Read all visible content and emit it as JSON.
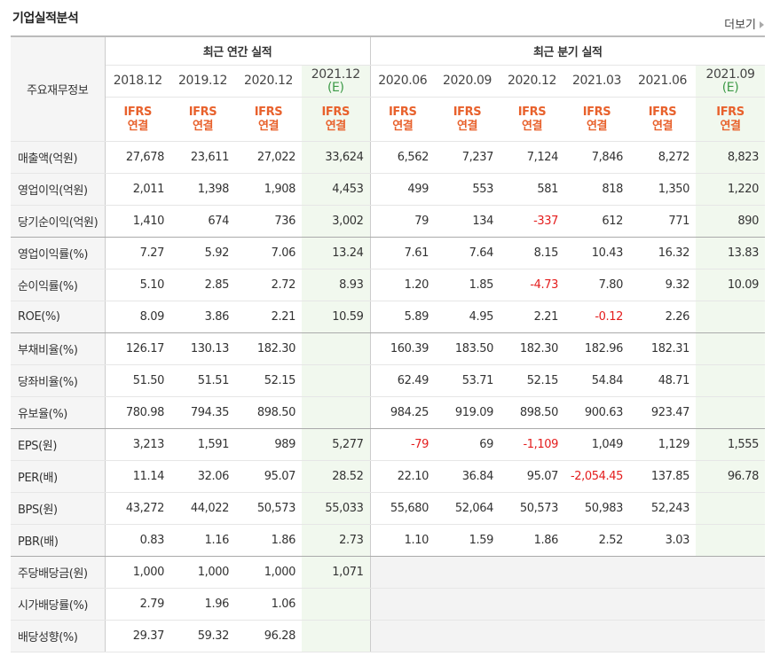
{
  "header": {
    "title": "기업실적분석",
    "more": "더보기"
  },
  "table": {
    "corner": "주요재무정보",
    "groups": [
      "최근 연간 실적",
      "최근 분기 실적"
    ],
    "periods": [
      {
        "label": "2018.12"
      },
      {
        "label": "2019.12"
      },
      {
        "label": "2020.12"
      },
      {
        "label": "2021.12",
        "note": "(E)"
      },
      {
        "label": "2020.06"
      },
      {
        "label": "2020.09"
      },
      {
        "label": "2020.12"
      },
      {
        "label": "2021.03"
      },
      {
        "label": "2021.06"
      },
      {
        "label": "2021.09",
        "note": "(E)"
      }
    ],
    "basis": [
      [
        "IFRS",
        "연결"
      ],
      [
        "IFRS",
        "연결"
      ],
      [
        "IFRS",
        "연결"
      ],
      [
        "IFRS",
        "연결"
      ],
      [
        "IFRS",
        "연결"
      ],
      [
        "IFRS",
        "연결"
      ],
      [
        "IFRS",
        "연결"
      ],
      [
        "IFRS",
        "연결"
      ],
      [
        "IFRS",
        "연결"
      ],
      [
        "IFRS",
        "연결"
      ]
    ],
    "rows": [
      {
        "label": "매출액(억원)",
        "values": [
          "27,678",
          "23,611",
          "27,022",
          "33,624",
          "6,562",
          "7,237",
          "7,124",
          "7,846",
          "8,272",
          "8,823"
        ]
      },
      {
        "label": "영업이익(억원)",
        "values": [
          "2,011",
          "1,398",
          "1,908",
          "4,453",
          "499",
          "553",
          "581",
          "818",
          "1,350",
          "1,220"
        ]
      },
      {
        "label": "당기순이익(억원)",
        "values": [
          "1,410",
          "674",
          "736",
          "3,002",
          "79",
          "134",
          "-337",
          "612",
          "771",
          "890"
        ]
      },
      {
        "label": "영업이익률(%)",
        "values": [
          "7.27",
          "5.92",
          "7.06",
          "13.24",
          "7.61",
          "7.64",
          "8.15",
          "10.43",
          "16.32",
          "13.83"
        ]
      },
      {
        "label": "순이익률(%)",
        "values": [
          "5.10",
          "2.85",
          "2.72",
          "8.93",
          "1.20",
          "1.85",
          "-4.73",
          "7.80",
          "9.32",
          "10.09"
        ]
      },
      {
        "label": "ROE(%)",
        "values": [
          "8.09",
          "3.86",
          "2.21",
          "10.59",
          "5.89",
          "4.95",
          "2.21",
          "-0.12",
          "2.26",
          null
        ]
      },
      {
        "label": "부채비율(%)",
        "values": [
          "126.17",
          "130.13",
          "182.30",
          null,
          "160.39",
          "183.50",
          "182.30",
          "182.96",
          "182.31",
          null
        ]
      },
      {
        "label": "당좌비율(%)",
        "values": [
          "51.50",
          "51.51",
          "52.15",
          null,
          "62.49",
          "53.71",
          "52.15",
          "54.84",
          "48.71",
          null
        ]
      },
      {
        "label": "유보율(%)",
        "values": [
          "780.98",
          "794.35",
          "898.50",
          null,
          "984.25",
          "919.09",
          "898.50",
          "900.63",
          "923.47",
          null
        ]
      },
      {
        "label": "EPS(원)",
        "values": [
          "3,213",
          "1,591",
          "989",
          "5,277",
          "-79",
          "69",
          "-1,109",
          "1,049",
          "1,129",
          "1,555"
        ]
      },
      {
        "label": "PER(배)",
        "values": [
          "11.14",
          "32.06",
          "95.07",
          "28.52",
          "22.10",
          "36.84",
          "95.07",
          "-2,054.45",
          "137.85",
          "96.78"
        ]
      },
      {
        "label": "BPS(원)",
        "values": [
          "43,272",
          "44,022",
          "50,573",
          "55,033",
          "55,680",
          "52,064",
          "50,573",
          "50,983",
          "52,243",
          null
        ]
      },
      {
        "label": "PBR(배)",
        "values": [
          "0.83",
          "1.16",
          "1.86",
          "2.73",
          "1.10",
          "1.59",
          "1.86",
          "2.52",
          "3.03",
          null
        ]
      },
      {
        "label": "주당배당금(원)",
        "values": [
          "1,000",
          "1,000",
          "1,000",
          "1,071",
          null,
          null,
          null,
          null,
          null,
          null
        ]
      },
      {
        "label": "시가배당률(%)",
        "values": [
          "2.79",
          "1.96",
          "1.06",
          null,
          null,
          null,
          null,
          null,
          null,
          null
        ]
      },
      {
        "label": "배당성향(%)",
        "values": [
          "29.37",
          "59.32",
          "96.28",
          null,
          null,
          null,
          null,
          null,
          null,
          null
        ]
      }
    ]
  }
}
